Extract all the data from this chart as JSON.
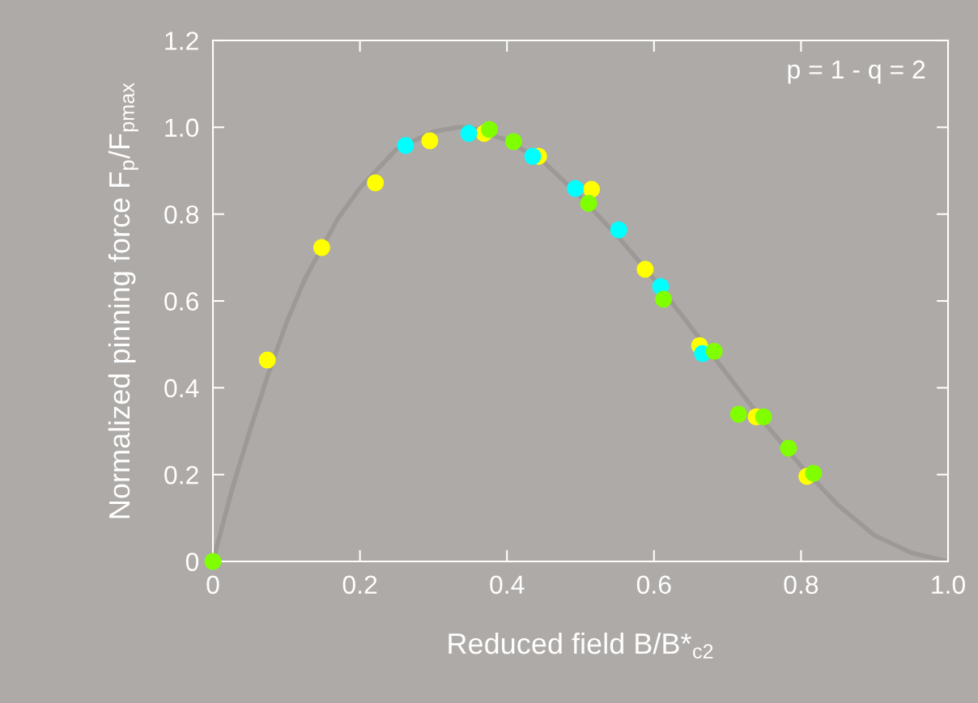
{
  "chart_data": {
    "type": "scatter",
    "xlabel": "Reduced field B/B*$_{c2}$",
    "ylabel": "Normalized pinning force F$_{p}$/F$_{pmax}$",
    "annotations": [
      "p = 1 - q = 2"
    ],
    "xlim": [
      0,
      1.0
    ],
    "ylim": [
      0,
      1.2
    ],
    "xticks": [
      0,
      0.2,
      0.4,
      0.6,
      0.8,
      {
        "value": 1.0,
        "label": "1.0"
      }
    ],
    "yticks": [
      0,
      0.2,
      0.4,
      0.6,
      0.8,
      {
        "value": 1.0,
        "label": "1.0"
      },
      1.2
    ],
    "grid": false,
    "legend": false,
    "series": [
      {
        "type": "line",
        "marker": "none",
        "color": "#9c9997",
        "x": [
          0,
          0.025,
          0.05,
          0.075,
          0.1,
          0.125,
          0.17,
          0.2,
          0.25,
          0.3,
          0.333,
          0.35,
          0.4,
          0.45,
          0.5,
          0.55,
          0.6,
          0.65,
          0.7,
          0.75,
          0.8,
          0.85,
          0.9,
          0.95,
          1.0
        ],
        "values": [
          0,
          0.16,
          0.3,
          0.43,
          0.55,
          0.65,
          0.79,
          0.86,
          0.95,
          0.99,
          1.0,
          1.0,
          0.97,
          0.92,
          0.84,
          0.75,
          0.65,
          0.54,
          0.43,
          0.32,
          0.22,
          0.13,
          0.06,
          0.02,
          0
        ]
      },
      {
        "marker": "circle",
        "color": "#ffff00",
        "x": [
          0.074,
          0.148,
          0.221,
          0.295,
          0.369,
          0.443,
          0.515,
          0.588,
          0.662,
          0.739,
          0.808
        ],
        "values": [
          0.464,
          0.723,
          0.872,
          0.969,
          0.986,
          0.933,
          0.857,
          0.673,
          0.497,
          0.333,
          0.196
        ]
      },
      {
        "marker": "circle",
        "color": "#00ffff",
        "x": [
          0.262,
          0.348,
          0.435,
          0.493,
          0.552,
          0.609,
          0.666
        ],
        "values": [
          0.958,
          0.986,
          0.933,
          0.859,
          0.764,
          0.633,
          0.479
        ]
      },
      {
        "marker": "circle",
        "color": "#80ff00",
        "x": [
          0,
          0.376,
          0.409,
          0.511,
          0.613,
          0.682,
          0.715,
          0.749,
          0.783,
          0.817
        ],
        "values": [
          0,
          0.995,
          0.967,
          0.825,
          0.604,
          0.484,
          0.339,
          0.333,
          0.261,
          0.203
        ]
      }
    ]
  }
}
